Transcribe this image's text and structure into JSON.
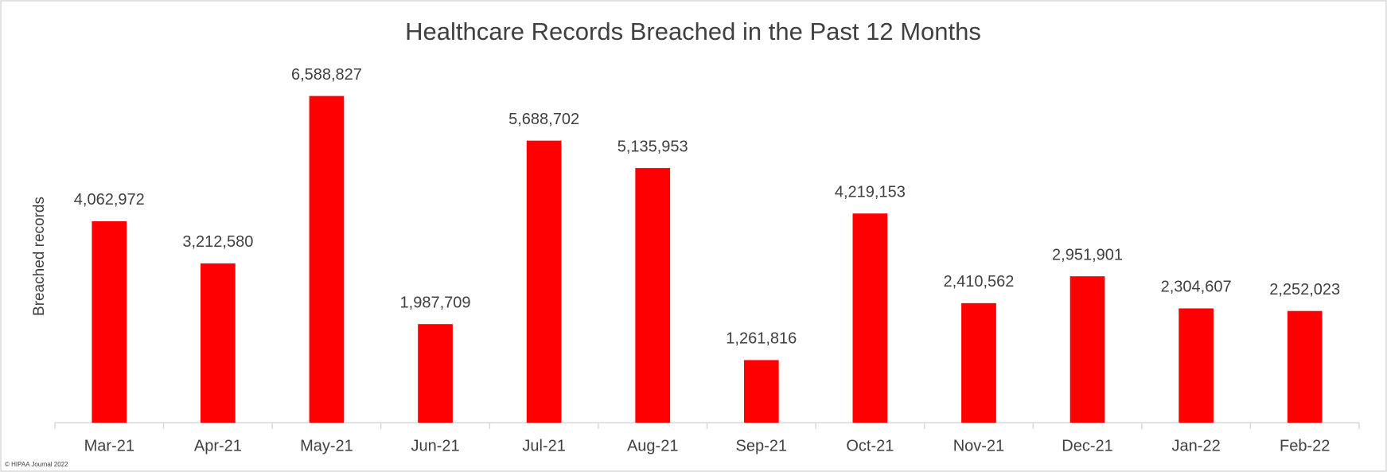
{
  "chart_data": {
    "type": "bar",
    "title": "Healthcare Records Breached in the Past 12 Months",
    "y_label": "Breached records",
    "credit": "© HIPAA Journal 2022",
    "categories": [
      "Mar-21",
      "Apr-21",
      "May-21",
      "Jun-21",
      "Jul-21",
      "Aug-21",
      "Sep-21",
      "Oct-21",
      "Nov-21",
      "Dec-21",
      "Jan-22",
      "Feb-22"
    ],
    "values": [
      4062972,
      3212580,
      6588827,
      1987709,
      5688702,
      5135953,
      1261816,
      4219153,
      2410562,
      2951901,
      2304607,
      2252023
    ],
    "value_labels": [
      "4,062,972",
      "3,212,580",
      "6,588,827",
      "1,987,709",
      "5,688,702",
      "5,135,953",
      "1,261,816",
      "4,219,153",
      "2,410,562",
      "2,951,901",
      "2,304,607",
      "2,252,023"
    ],
    "color": "#ff0000",
    "ylim": [
      0,
      7000000
    ]
  }
}
